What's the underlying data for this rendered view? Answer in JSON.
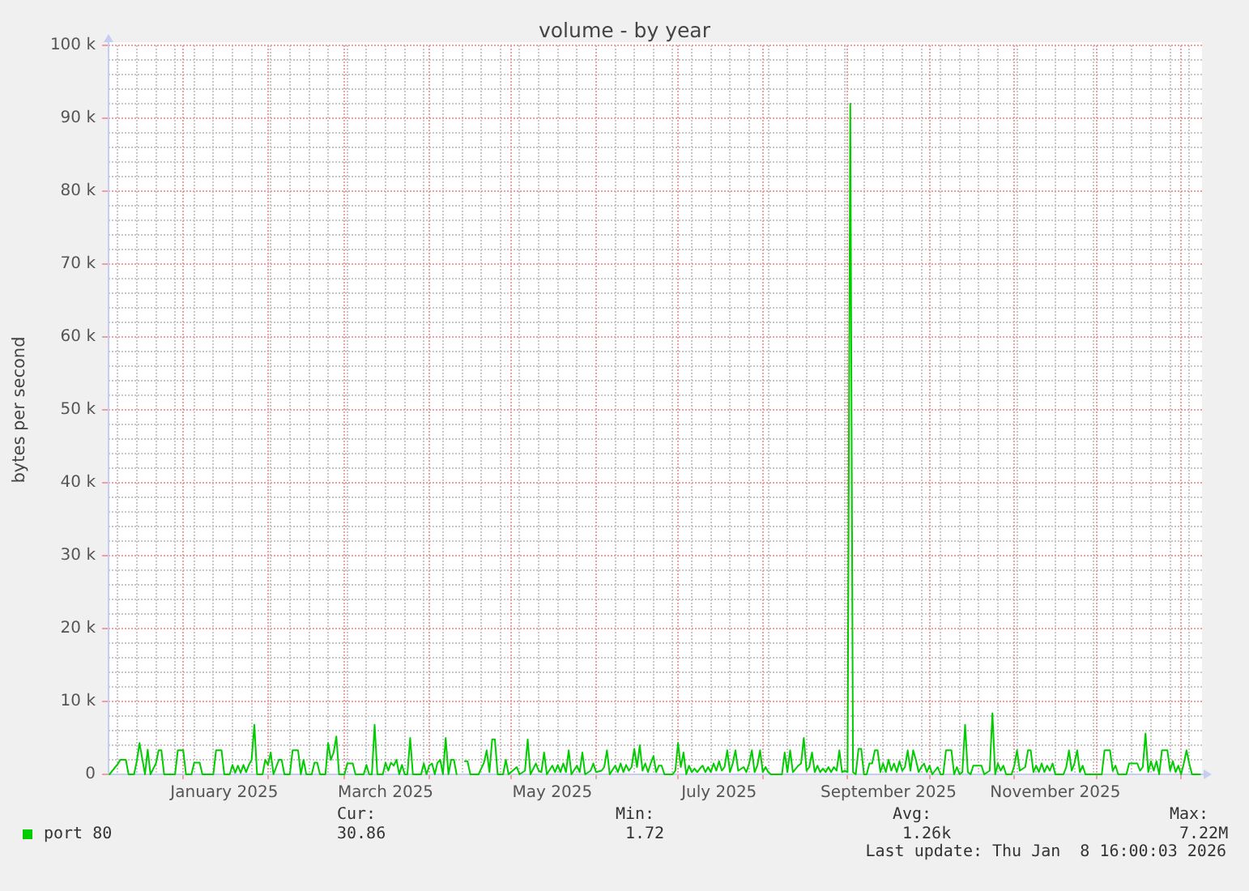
{
  "chart_data": {
    "type": "line",
    "title": "volume - by year",
    "ylabel": "bytes per second",
    "xlim": [
      "2024-12-04T16:00",
      "2026-01-08T16:00"
    ],
    "xticks": [
      {
        "value": "2025-01-01",
        "label": null
      },
      {
        "value": "2025-01-16",
        "label": "January 2025"
      },
      {
        "value": "2025-02-01",
        "label": null
      },
      {
        "value": "2025-03-01",
        "label": null
      },
      {
        "value": "2025-03-16",
        "label": "March 2025"
      },
      {
        "value": "2025-04-01",
        "label": null
      },
      {
        "value": "2025-05-01",
        "label": null
      },
      {
        "value": "2025-05-16",
        "label": "May 2025"
      },
      {
        "value": "2025-06-01",
        "label": null
      },
      {
        "value": "2025-07-01",
        "label": null
      },
      {
        "value": "2025-07-16",
        "label": "July 2025"
      },
      {
        "value": "2025-08-01",
        "label": null
      },
      {
        "value": "2025-09-01",
        "label": null
      },
      {
        "value": "2025-09-16",
        "label": "September 2025"
      },
      {
        "value": "2025-10-01",
        "label": null
      },
      {
        "value": "2025-11-01",
        "label": null
      },
      {
        "value": "2025-11-16",
        "label": "November 2025"
      },
      {
        "value": "2025-12-01",
        "label": null
      },
      {
        "value": "2026-01-01",
        "label": null
      }
    ],
    "ylim": [
      0,
      100000
    ],
    "yticks": [
      0,
      {
        "value": 10000,
        "label": "10 k"
      },
      {
        "value": 20000,
        "label": "20 k"
      },
      {
        "value": 30000,
        "label": "30 k"
      },
      {
        "value": 40000,
        "label": "40 k"
      },
      {
        "value": 50000,
        "label": "50 k"
      },
      {
        "value": 60000,
        "label": "60 k"
      },
      {
        "value": 70000,
        "label": "70 k"
      },
      {
        "value": 80000,
        "label": "80 k"
      },
      {
        "value": 90000,
        "label": "90 k"
      },
      {
        "value": 100000,
        "label": "100 k"
      }
    ],
    "grid": true,
    "legend": "bottom left",
    "x": [
      "2024-12-05",
      "2024-12-08",
      "2024-12-09",
      "2024-12-11",
      "2024-12-12",
      "2024-12-14",
      "2024-12-15",
      "2024-12-16",
      "2024-12-18",
      "2024-12-19",
      "2024-12-20",
      "2024-12-22",
      "2024-12-23",
      "2024-12-24",
      "2024-12-25",
      "2024-12-29",
      "2024-12-30",
      "2025-01-01",
      "2025-01-02",
      "2025-01-04",
      "2025-01-05",
      "2025-01-07",
      "2025-01-08",
      "2025-01-12",
      "2025-01-13",
      "2025-01-15",
      "2025-01-16",
      "2025-01-18",
      "2025-01-19",
      "2025-01-20",
      "2025-01-21",
      "2025-01-22",
      "2025-01-23",
      "2025-01-24",
      "2025-01-25",
      "2025-01-26",
      "2025-01-27",
      "2025-01-28",
      "2025-01-30",
      "2025-01-31",
      "2025-02-01",
      "2025-02-02",
      "2025-02-03",
      "2025-02-05",
      "2025-02-06",
      "2025-02-07",
      "2025-02-09",
      "2025-02-10",
      "2025-02-12",
      "2025-02-13",
      "2025-02-14",
      "2025-02-15",
      "2025-02-17",
      "2025-02-18",
      "2025-02-19",
      "2025-02-20",
      "2025-02-22",
      "2025-02-23",
      "2025-02-24",
      "2025-02-25",
      "2025-02-26",
      "2025-02-27",
      "2025-03-01",
      "2025-03-02",
      "2025-03-04",
      "2025-03-05",
      "2025-03-08",
      "2025-03-09",
      "2025-03-10",
      "2025-03-11",
      "2025-03-12",
      "2025-03-13",
      "2025-03-15",
      "2025-03-16",
      "2025-03-17",
      "2025-03-18",
      "2025-03-19",
      "2025-03-20",
      "2025-03-21",
      "2025-03-22",
      "2025-03-23",
      "2025-03-24",
      "2025-03-25",
      "2025-03-26",
      "2025-03-29",
      "2025-03-30",
      "2025-03-31",
      "2025-04-01",
      "2025-04-02",
      "2025-04-03",
      "2025-04-04",
      "2025-04-05",
      "2025-04-06",
      "2025-04-07",
      "2025-04-08",
      "2025-04-09",
      "2025-04-10",
      "2025-04-11",
      "2025-04-12",
      "2025-04-14",
      "2025-04-15",
      "2025-04-16",
      "2025-04-19",
      "2025-04-21",
      "2025-04-22",
      "2025-04-23",
      "2025-04-24",
      "2025-04-25",
      "2025-04-26",
      "2025-04-28",
      "2025-04-29",
      "2025-04-30",
      "2025-05-03",
      "2025-05-04",
      "2025-05-06",
      "2025-05-07",
      "2025-05-08",
      "2025-05-10",
      "2025-05-11",
      "2025-05-12",
      "2025-05-13",
      "2025-05-14",
      "2025-05-16",
      "2025-05-17",
      "2025-05-18",
      "2025-05-19",
      "2025-05-20",
      "2025-05-21",
      "2025-05-22",
      "2025-05-23",
      "2025-05-25",
      "2025-05-26",
      "2025-05-27",
      "2025-05-28",
      "2025-05-30",
      "2025-05-31",
      "2025-06-01",
      "2025-06-03",
      "2025-06-04",
      "2025-06-05",
      "2025-06-06",
      "2025-06-08",
      "2025-06-09",
      "2025-06-10",
      "2025-06-11",
      "2025-06-12",
      "2025-06-13",
      "2025-06-14",
      "2025-06-15",
      "2025-06-16",
      "2025-06-17",
      "2025-06-18",
      "2025-06-19",
      "2025-06-20",
      "2025-06-21",
      "2025-06-22",
      "2025-06-23",
      "2025-06-24",
      "2025-06-25",
      "2025-06-26",
      "2025-06-29",
      "2025-06-30",
      "2025-07-01",
      "2025-07-02",
      "2025-07-03",
      "2025-07-04",
      "2025-07-05",
      "2025-07-06",
      "2025-07-07",
      "2025-07-08",
      "2025-07-09",
      "2025-07-10",
      "2025-07-11",
      "2025-07-12",
      "2025-07-13",
      "2025-07-14",
      "2025-07-15",
      "2025-07-16",
      "2025-07-17",
      "2025-07-18",
      "2025-07-19",
      "2025-07-20",
      "2025-07-21",
      "2025-07-22",
      "2025-07-23",
      "2025-07-25",
      "2025-07-26",
      "2025-07-27",
      "2025-07-28",
      "2025-07-29",
      "2025-07-30",
      "2025-07-31",
      "2025-08-01",
      "2025-08-02",
      "2025-08-03",
      "2025-08-04",
      "2025-08-08",
      "2025-08-09",
      "2025-08-10",
      "2025-08-11",
      "2025-08-12",
      "2025-08-14",
      "2025-08-15",
      "2025-08-16",
      "2025-08-17",
      "2025-08-18",
      "2025-08-19",
      "2025-08-20",
      "2025-08-21",
      "2025-08-22",
      "2025-08-23",
      "2025-08-24",
      "2025-08-25",
      "2025-08-26",
      "2025-08-27",
      "2025-08-28",
      "2025-08-29",
      "2025-08-30",
      "2025-08-31",
      "2025-09-01",
      "2025-09-02",
      "2025-09-03",
      "2025-09-04",
      "2025-09-05",
      "2025-09-06",
      "2025-09-07",
      "2025-09-08",
      "2025-09-09",
      "2025-09-10",
      "2025-09-11",
      "2025-09-12",
      "2025-09-13",
      "2025-09-14",
      "2025-09-15",
      "2025-09-16",
      "2025-09-17",
      "2025-09-18",
      "2025-09-19",
      "2025-09-20",
      "2025-09-21",
      "2025-09-22",
      "2025-09-23",
      "2025-09-24",
      "2025-09-25",
      "2025-09-26",
      "2025-09-27",
      "2025-09-28",
      "2025-09-29",
      "2025-09-30",
      "2025-10-01",
      "2025-10-02",
      "2025-10-04",
      "2025-10-05",
      "2025-10-06",
      "2025-10-07",
      "2025-10-09",
      "2025-10-10",
      "2025-10-11",
      "2025-10-12",
      "2025-10-13",
      "2025-10-14",
      "2025-10-15",
      "2025-10-16",
      "2025-10-17",
      "2025-10-20",
      "2025-10-21",
      "2025-10-23",
      "2025-10-24",
      "2025-10-25",
      "2025-10-26",
      "2025-10-27",
      "2025-10-28",
      "2025-10-29",
      "2025-10-31",
      "2025-11-01",
      "2025-11-02",
      "2025-11-03",
      "2025-11-05",
      "2025-11-06",
      "2025-11-07",
      "2025-11-08",
      "2025-11-09",
      "2025-11-10",
      "2025-11-11",
      "2025-11-12",
      "2025-11-13",
      "2025-11-14",
      "2025-11-15",
      "2025-11-16",
      "2025-11-19",
      "2025-11-20",
      "2025-11-21",
      "2025-11-22",
      "2025-11-23",
      "2025-11-24",
      "2025-11-25",
      "2025-11-26",
      "2025-11-27",
      "2025-12-03",
      "2025-12-04",
      "2025-12-06",
      "2025-12-07",
      "2025-12-08",
      "2025-12-09",
      "2025-12-12",
      "2025-12-13",
      "2025-12-16",
      "2025-12-17",
      "2025-12-18",
      "2025-12-19",
      "2025-12-20",
      "2025-12-21",
      "2025-12-22",
      "2025-12-23",
      "2025-12-24",
      "2025-12-25",
      "2025-12-27",
      "2025-12-28",
      "2025-12-29",
      "2025-12-30",
      "2025-12-31",
      "2026-01-01",
      "2026-01-02",
      "2026-01-03",
      "2026-01-04",
      "2026-01-05",
      "2026-01-08"
    ],
    "series": [
      {
        "name": "port 80",
        "color": "#00cc00",
        "values": [
          0,
          1400,
          2000,
          2000,
          0,
          0,
          1800,
          4300,
          0,
          3400,
          0,
          1500,
          3300,
          3300,
          0,
          0,
          3300,
          3300,
          0,
          0,
          1600,
          1600,
          0,
          0,
          3300,
          3300,
          0,
          0,
          1300,
          200,
          1200,
          200,
          1300,
          300,
          1300,
          2000,
          6800,
          0,
          0,
          2000,
          1300,
          3000,
          0,
          2000,
          2000,
          0,
          0,
          3300,
          3300,
          0,
          2000,
          0,
          0,
          1600,
          1600,
          0,
          0,
          4300,
          2000,
          3000,
          5200,
          0,
          0,
          1500,
          1500,
          0,
          0,
          1300,
          0,
          0,
          6800,
          0,
          0,
          1600,
          500,
          1600,
          1200,
          2000,
          0,
          1300,
          0,
          0,
          5000,
          0,
          0,
          1500,
          0,
          1200,
          1500,
          0,
          1600,
          2000,
          0,
          5000,
          0,
          2000,
          2000,
          0,
          null,
          1800,
          1800,
          0,
          0,
          1600,
          3300,
          300,
          4800,
          4800,
          0,
          0,
          2000,
          0,
          1000,
          0,
          500,
          4800,
          0,
          1500,
          500,
          300,
          3000,
          0,
          1200,
          300,
          1300,
          300,
          1500,
          300,
          3300,
          0,
          1200,
          300,
          3000,
          0,
          500,
          1500,
          300,
          500,
          1000,
          3300,
          0,
          1200,
          300,
          1500,
          300,
          1300,
          500,
          1000,
          3500,
          1000,
          4000,
          500,
          1500,
          300,
          1500,
          2500,
          300,
          1200,
          1200,
          0,
          0,
          500,
          4300,
          1000,
          3000,
          0,
          1200,
          300,
          800,
          300,
          800,
          1200,
          300,
          1000,
          300,
          1500,
          500,
          1800,
          500,
          1000,
          3300,
          300,
          1500,
          3300,
          500,
          1000,
          300,
          1500,
          3300,
          300,
          1200,
          3300,
          300,
          1000,
          300,
          0,
          0,
          3000,
          300,
          3300,
          300,
          1200,
          1500,
          5000,
          500,
          1000,
          3000,
          300,
          1200,
          300,
          800,
          300,
          1000,
          300,
          1000,
          500,
          3300,
          300,
          500,
          300,
          92000,
          300,
          0,
          3500,
          3500,
          0,
          0,
          1500,
          1500,
          3300,
          3300,
          300,
          1500,
          300,
          2000,
          500,
          1500,
          300,
          1800,
          500,
          1000,
          3300,
          500,
          3300,
          2000,
          300,
          1000,
          1500,
          300,
          1200,
          0,
          1000,
          0,
          0,
          3300,
          3300,
          0,
          1000,
          0,
          300,
          6800,
          300,
          0,
          1200,
          1200,
          0,
          500,
          8400,
          0,
          1500,
          500,
          1200,
          0,
          0,
          1200,
          3300,
          500,
          1000,
          3300,
          3300,
          300,
          1200,
          300,
          1500,
          300,
          1200,
          500,
          1500,
          0,
          0,
          1000,
          3300,
          500,
          1500,
          3300,
          300,
          1200,
          0,
          0,
          3300,
          3300,
          500,
          1200,
          0,
          0,
          1500,
          1500,
          500,
          1000,
          5600,
          300,
          1800,
          500,
          1800,
          0,
          3300,
          3300,
          500,
          1800,
          300,
          1200,
          0,
          1500,
          3300,
          1500,
          0,
          0
        ]
      }
    ],
    "annotations": [
      "Cur:",
      "30.86",
      "Min:",
      "1.72",
      "Avg:",
      "1.26k",
      "Max:",
      "7.22M",
      "Last update: Thu Jan  8 16:00:03 2026"
    ]
  }
}
